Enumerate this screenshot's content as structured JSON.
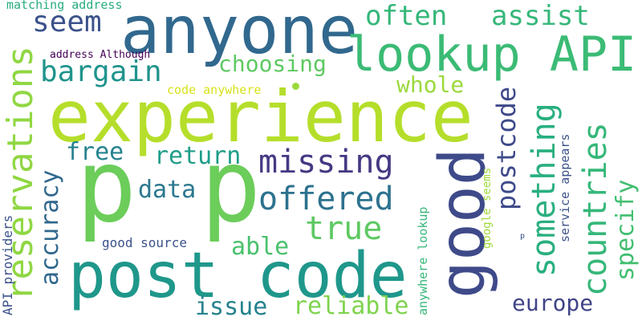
{
  "words": [
    {
      "id": "experience",
      "text": "experience",
      "color": "#b5de2b"
    },
    {
      "id": "p-1",
      "text": "p",
      "color": "#6ccd5a"
    },
    {
      "id": "p-2",
      "text": "p",
      "color": "#6ccd5a"
    },
    {
      "id": "post-code",
      "text": "post code",
      "color": "#1f978b"
    },
    {
      "id": "anyone",
      "text": "anyone",
      "color": "#31688e"
    },
    {
      "id": "good",
      "text": "good",
      "color": "#3e4a89"
    },
    {
      "id": "lookup-api",
      "text": "lookup API",
      "color": "#3bbb75"
    },
    {
      "id": "reservations",
      "text": "reservations",
      "color": "#90d743"
    },
    {
      "id": "countries",
      "text": "countries",
      "color": "#35b779"
    },
    {
      "id": "something",
      "text": "something",
      "color": "#29af7f"
    },
    {
      "id": "often",
      "text": "often",
      "color": "#35b779"
    },
    {
      "id": "assist",
      "text": "assist",
      "color": "#35b779"
    },
    {
      "id": "seem",
      "text": "seem",
      "color": "#3b528b"
    },
    {
      "id": "bargain",
      "text": "bargain",
      "color": "#1f948c"
    },
    {
      "id": "missing",
      "text": "missing",
      "color": "#443983"
    },
    {
      "id": "offered",
      "text": "offered",
      "color": "#2c728e"
    },
    {
      "id": "true",
      "text": "true",
      "color": "#5ec962"
    },
    {
      "id": "choosing",
      "text": "choosing",
      "color": "#5ec962"
    },
    {
      "id": "whole",
      "text": "whole",
      "color": "#9bd93c"
    },
    {
      "id": "postcode",
      "text": "postcode",
      "color": "#3e4a89"
    },
    {
      "id": "specify",
      "text": "specify",
      "color": "#42be71"
    },
    {
      "id": "free",
      "text": "free",
      "color": "#26828e"
    },
    {
      "id": "return",
      "text": "return",
      "color": "#1f9e89"
    },
    {
      "id": "data",
      "text": "data",
      "color": "#2a788e"
    },
    {
      "id": "accuracy",
      "text": "accuracy",
      "color": "#31688e"
    },
    {
      "id": "able",
      "text": "able",
      "color": "#4ac16d"
    },
    {
      "id": "reliable",
      "text": "reliable",
      "color": "#7fd34e"
    },
    {
      "id": "issue",
      "text": "issue",
      "color": "#26828e"
    },
    {
      "id": "europe",
      "text": "europe",
      "color": "#414487"
    },
    {
      "id": "good-source",
      "text": "good source",
      "color": "#3b528b"
    },
    {
      "id": "matching-address",
      "text": "matching address",
      "color": "#27ad81"
    },
    {
      "id": "address-although",
      "text": "address Although",
      "color": "#440154"
    },
    {
      "id": "code-anywhere",
      "text": "code anywhere",
      "color": "#d8e219"
    },
    {
      "id": "api-providers",
      "text": "API providers",
      "color": "#3b528b"
    },
    {
      "id": "anywhere-lookup",
      "text": "anywhere lookup",
      "color": "#35b779"
    },
    {
      "id": "google-seems",
      "text": "google seems",
      "color": "#9fda3a"
    },
    {
      "id": "service-appears",
      "text": "service appears",
      "color": "#3b528b"
    },
    {
      "id": "p-small",
      "text": "p",
      "color": "#3b528b"
    }
  ]
}
